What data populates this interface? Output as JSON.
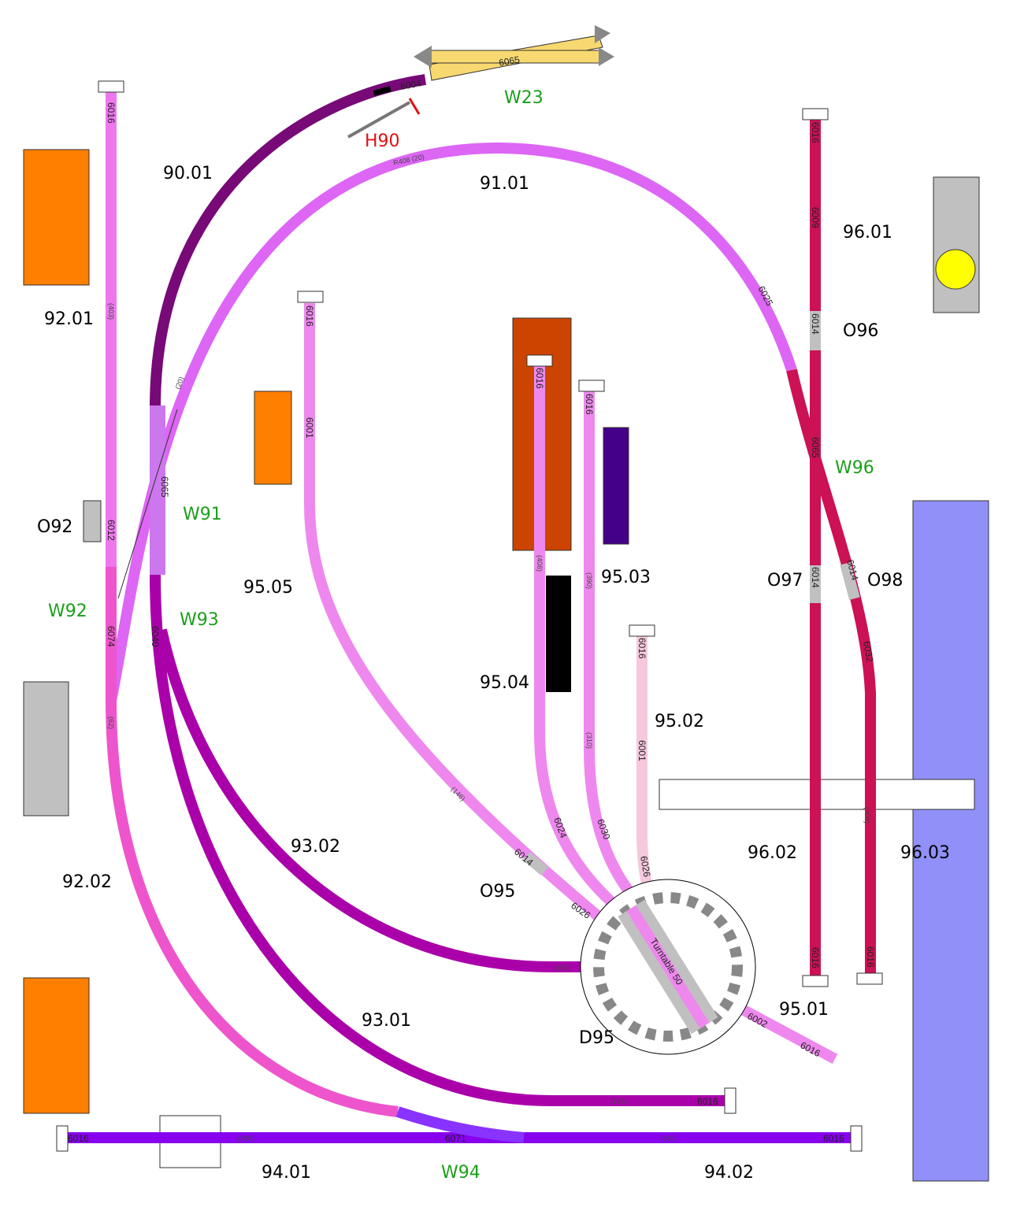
{
  "colors": {
    "track_92_upper": "#ee77ee",
    "track_92_lower": "#ee55cc",
    "track_90": "#770a77",
    "track_91": "#dd66f5",
    "switch_w91": "#cc77ee",
    "track_93": "#aa00aa",
    "track_94": "#8800ee",
    "switch_w94": "#8833ff",
    "track_95": "#ee88ee",
    "track_95_02": "#f6c8de",
    "track_96": "#cc1155",
    "crossover_w23": "#f8d870",
    "building_orange": "#ff7f00",
    "building_brown": "#cc4400",
    "building_purple": "#440088",
    "building_grey": "#c0c0c0",
    "platform_blue": "#9090f8",
    "signal_yellow": "#ffff00"
  },
  "block_labels": {
    "b9001": "90.01",
    "b9101": "91.01",
    "b9201": "92.01",
    "b9202": "92.02",
    "b9301": "93.01",
    "b9302": "93.02",
    "b9401": "94.01",
    "b9402": "94.02",
    "b9501": "95.01",
    "b9502": "95.02",
    "b9503": "95.03",
    "b9504": "95.04",
    "b9505": "95.05",
    "b9601": "96.01",
    "b9602": "96.02",
    "b9603": "96.03",
    "o92": "O92",
    "o95": "O95",
    "o96": "O96",
    "o97": "O97",
    "o98": "O98",
    "d95": "D95"
  },
  "switch_labels": {
    "w23": "W23",
    "w91": "W91",
    "w92": "W92",
    "w93": "W93",
    "w94": "W94",
    "w96": "W96"
  },
  "signal_labels": {
    "h90": "H90"
  },
  "track_labels": {
    "t6016a": "6016",
    "t6016b": "6016",
    "t6016c": "6016",
    "t6016d": "6016",
    "t6016e": "6016",
    "t6016f": "6016",
    "t6016g": "6016",
    "t6016h": "6016",
    "t6016i": "6016",
    "t6016j": "6016",
    "t6016k": "6016",
    "t6016l": "6016",
    "t6004": "6004",
    "t6065a": "6065",
    "t6065b": "6065",
    "t6065c": "6065",
    "tR408": "R408 (20)",
    "t6009": "6009",
    "t6014a": "6014",
    "t6014b": "6014",
    "t6014c": "6014",
    "t6014d": "6014",
    "t6025": "6025",
    "t6012": "6012",
    "t6074": "6074",
    "t6071": "6071",
    "t6001a": "6001",
    "t6001b": "6001",
    "t6024": "6024",
    "t6030": "6030",
    "t6026a": "6026",
    "t6026b": "6026",
    "t6002": "6002",
    "t6032": "6032",
    "t6040": "6040",
    "turntable": "Turntable 50",
    "p100": "(100)",
    "p178": "(178)",
    "p386a": "(386)",
    "p386b": "(386)",
    "p146": "(146)",
    "p408": "(408)",
    "p390": "(390)",
    "p310": "(310)",
    "p300": "(300)",
    "p62": "(62)",
    "p403": "(403)",
    "p20": "(20)"
  }
}
